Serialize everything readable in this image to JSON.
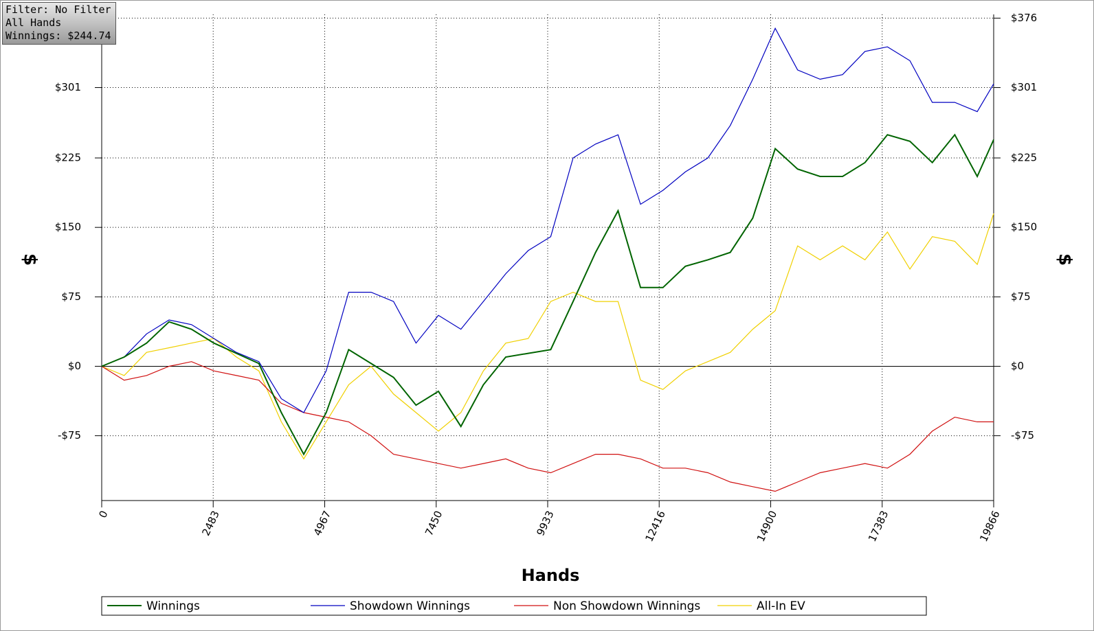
{
  "info": [
    "Filter: No Filter",
    "All Hands",
    "Winnings: $244.74"
  ],
  "chart_data": {
    "type": "line",
    "x_label": "Hands",
    "y_label": "$",
    "y2_label": "$",
    "xlim": [
      0,
      19866
    ],
    "xticks": [
      0,
      2483,
      4967,
      7450,
      9933,
      12416,
      14900,
      17383,
      19866
    ],
    "ylim": [
      -145,
      380
    ],
    "yticks": [
      {
        "value": -75,
        "label": "-$75"
      },
      {
        "value": 0,
        "label": "$0"
      },
      {
        "value": 75,
        "label": "$75"
      },
      {
        "value": 150,
        "label": "$150"
      },
      {
        "value": 225,
        "label": "$225"
      },
      {
        "value": 301,
        "label": "$301"
      },
      {
        "value": 376,
        "label": "$376"
      }
    ],
    "y2lim": [
      -145,
      380
    ],
    "y2ticks": [
      {
        "value": -75,
        "label": "-$75"
      },
      {
        "value": 0,
        "label": "$0"
      },
      {
        "value": 75,
        "label": "$75"
      },
      {
        "value": 150,
        "label": "$150"
      },
      {
        "value": 225,
        "label": "$225"
      },
      {
        "value": 301,
        "label": "$301"
      },
      {
        "value": 376,
        "label": "$376"
      }
    ],
    "grid": true,
    "legend_position": "bottom",
    "x": [
      0,
      500,
      1000,
      1500,
      2000,
      2500,
      3000,
      3500,
      4000,
      4500,
      5000,
      5500,
      6000,
      6500,
      7000,
      7500,
      8000,
      8500,
      9000,
      9500,
      10000,
      10500,
      11000,
      11500,
      12000,
      12500,
      13000,
      13500,
      14000,
      14500,
      15000,
      15500,
      16000,
      16500,
      17000,
      17500,
      18000,
      18500,
      19000,
      19500,
      19866
    ],
    "series": [
      {
        "name": "Winnings",
        "color": "#006400",
        "values": [
          0,
          10,
          25,
          48,
          40,
          25,
          14,
          3,
          -50,
          -95,
          -50,
          18,
          3,
          -12,
          -42,
          -27,
          -65,
          -20,
          10,
          14,
          18,
          70,
          123,
          168,
          85,
          85,
          108,
          115,
          123,
          160,
          235,
          213,
          205,
          205,
          220,
          250,
          243,
          220,
          250,
          205,
          244.74
        ]
      },
      {
        "name": "Showdown Winnings",
        "color": "#0000c0",
        "values": [
          0,
          10,
          35,
          50,
          45,
          30,
          15,
          5,
          -35,
          -50,
          -5,
          80,
          80,
          70,
          25,
          55,
          40,
          70,
          100,
          125,
          140,
          225,
          240,
          250,
          175,
          190,
          210,
          225,
          260,
          310,
          365,
          320,
          310,
          315,
          340,
          345,
          330,
          285,
          285,
          275,
          305
        ]
      },
      {
        "name": "Non Showdown Winnings",
        "color": "#d01010",
        "values": [
          0,
          -15,
          -10,
          0,
          5,
          -5,
          -10,
          -15,
          -40,
          -50,
          -55,
          -60,
          -75,
          -95,
          -100,
          -105,
          -110,
          -105,
          -100,
          -110,
          -115,
          -105,
          -95,
          -95,
          -100,
          -110,
          -110,
          -115,
          -125,
          -130,
          -135,
          -125,
          -115,
          -110,
          -105,
          -110,
          -95,
          -70,
          -55,
          -60,
          -60
        ]
      },
      {
        "name": "All-In EV",
        "color": "#f0d000",
        "values": [
          0,
          -10,
          15,
          20,
          25,
          30,
          10,
          -5,
          -60,
          -100,
          -60,
          -20,
          0,
          -30,
          -50,
          -70,
          -50,
          -5,
          25,
          30,
          70,
          80,
          70,
          70,
          -15,
          -25,
          -5,
          5,
          15,
          40,
          60,
          130,
          115,
          130,
          115,
          145,
          105,
          140,
          135,
          110,
          165
        ]
      }
    ]
  }
}
